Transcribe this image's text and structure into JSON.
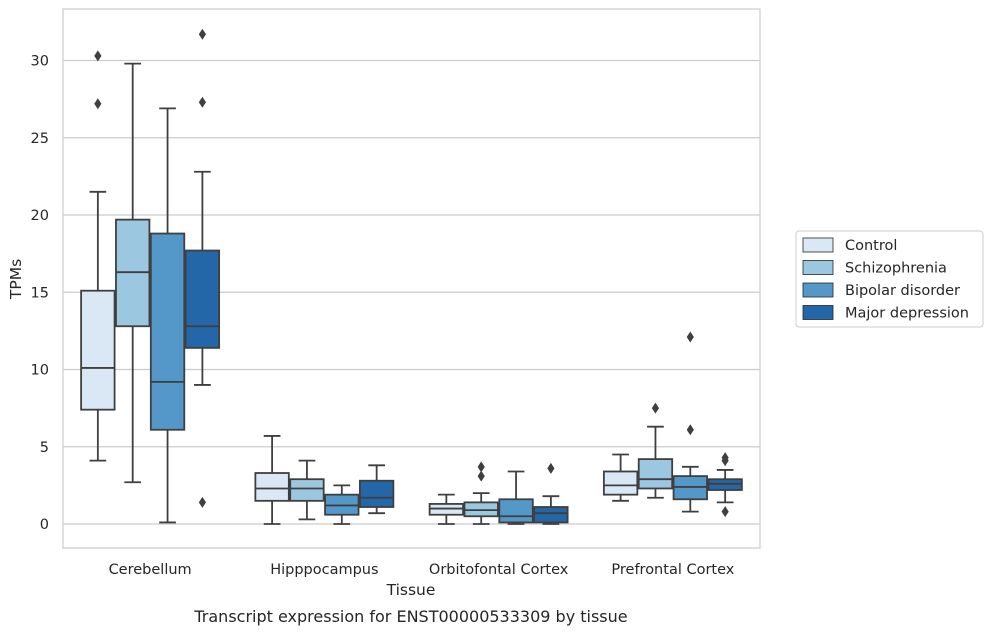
{
  "chart_data": {
    "type": "box",
    "title": "",
    "caption": "Transcript expression for ENST00000533309 by tissue",
    "xlabel": "Tissue",
    "ylabel": "TPMs",
    "ylim": [
      -1.5,
      32.5
    ],
    "yticks": [
      0,
      5,
      10,
      15,
      20,
      25,
      30
    ],
    "grid": "horizontal",
    "legend_position": "right",
    "categories": [
      "Cerebellum",
      "Hipppocampus",
      "Orbitofontal Cortex",
      "Prefrontal Cortex"
    ],
    "series": [
      {
        "name": "Control",
        "color": "#dae8f5",
        "boxes": [
          {
            "whislo": 4.1,
            "q1": 7.4,
            "med": 10.1,
            "q3": 15.1,
            "whishi": 21.5,
            "fliers": [
              27.2,
              30.3
            ]
          },
          {
            "whislo": 0.0,
            "q1": 1.5,
            "med": 2.3,
            "q3": 3.3,
            "whishi": 5.7,
            "fliers": []
          },
          {
            "whislo": 0.0,
            "q1": 0.6,
            "med": 1.0,
            "q3": 1.3,
            "whishi": 1.9,
            "fliers": []
          },
          {
            "whislo": 1.5,
            "q1": 1.9,
            "med": 2.5,
            "q3": 3.4,
            "whishi": 4.5,
            "fliers": []
          }
        ]
      },
      {
        "name": "Schizophrenia",
        "color": "#9bc7e0",
        "boxes": [
          {
            "whislo": 2.7,
            "q1": 12.8,
            "med": 16.3,
            "q3": 19.7,
            "whishi": 29.8,
            "fliers": []
          },
          {
            "whislo": 0.3,
            "q1": 1.5,
            "med": 2.3,
            "q3": 2.9,
            "whishi": 4.1,
            "fliers": []
          },
          {
            "whislo": 0.0,
            "q1": 0.5,
            "med": 0.9,
            "q3": 1.4,
            "whishi": 2.0,
            "fliers": [
              3.1,
              3.7
            ]
          },
          {
            "whislo": 1.7,
            "q1": 2.3,
            "med": 2.9,
            "q3": 4.2,
            "whishi": 6.3,
            "fliers": [
              7.5
            ]
          }
        ]
      },
      {
        "name": "Bipolar disorder",
        "color": "#5498c9",
        "boxes": [
          {
            "whislo": 0.1,
            "q1": 6.1,
            "med": 9.2,
            "q3": 18.8,
            "whishi": 26.9,
            "fliers": []
          },
          {
            "whislo": 0.0,
            "q1": 0.6,
            "med": 1.2,
            "q3": 1.9,
            "whishi": 2.5,
            "fliers": []
          },
          {
            "whislo": 0.0,
            "q1": 0.1,
            "med": 0.5,
            "q3": 1.6,
            "whishi": 3.4,
            "fliers": []
          },
          {
            "whislo": 0.8,
            "q1": 1.6,
            "med": 2.4,
            "q3": 3.1,
            "whishi": 3.7,
            "fliers": [
              6.1,
              12.1
            ]
          }
        ]
      },
      {
        "name": "Major depression",
        "color": "#2367a8",
        "boxes": [
          {
            "whislo": 9.0,
            "q1": 11.4,
            "med": 12.8,
            "q3": 17.7,
            "whishi": 22.8,
            "fliers": [
              1.4,
              27.3,
              31.7
            ]
          },
          {
            "whislo": 0.7,
            "q1": 1.1,
            "med": 1.7,
            "q3": 2.8,
            "whishi": 3.8,
            "fliers": []
          },
          {
            "whislo": 0.0,
            "q1": 0.1,
            "med": 0.7,
            "q3": 1.1,
            "whishi": 1.8,
            "fliers": [
              3.6
            ]
          },
          {
            "whislo": 1.4,
            "q1": 2.2,
            "med": 2.6,
            "q3": 2.9,
            "whishi": 3.5,
            "fliers": [
              0.8,
              4.1,
              4.3
            ]
          }
        ]
      }
    ]
  }
}
